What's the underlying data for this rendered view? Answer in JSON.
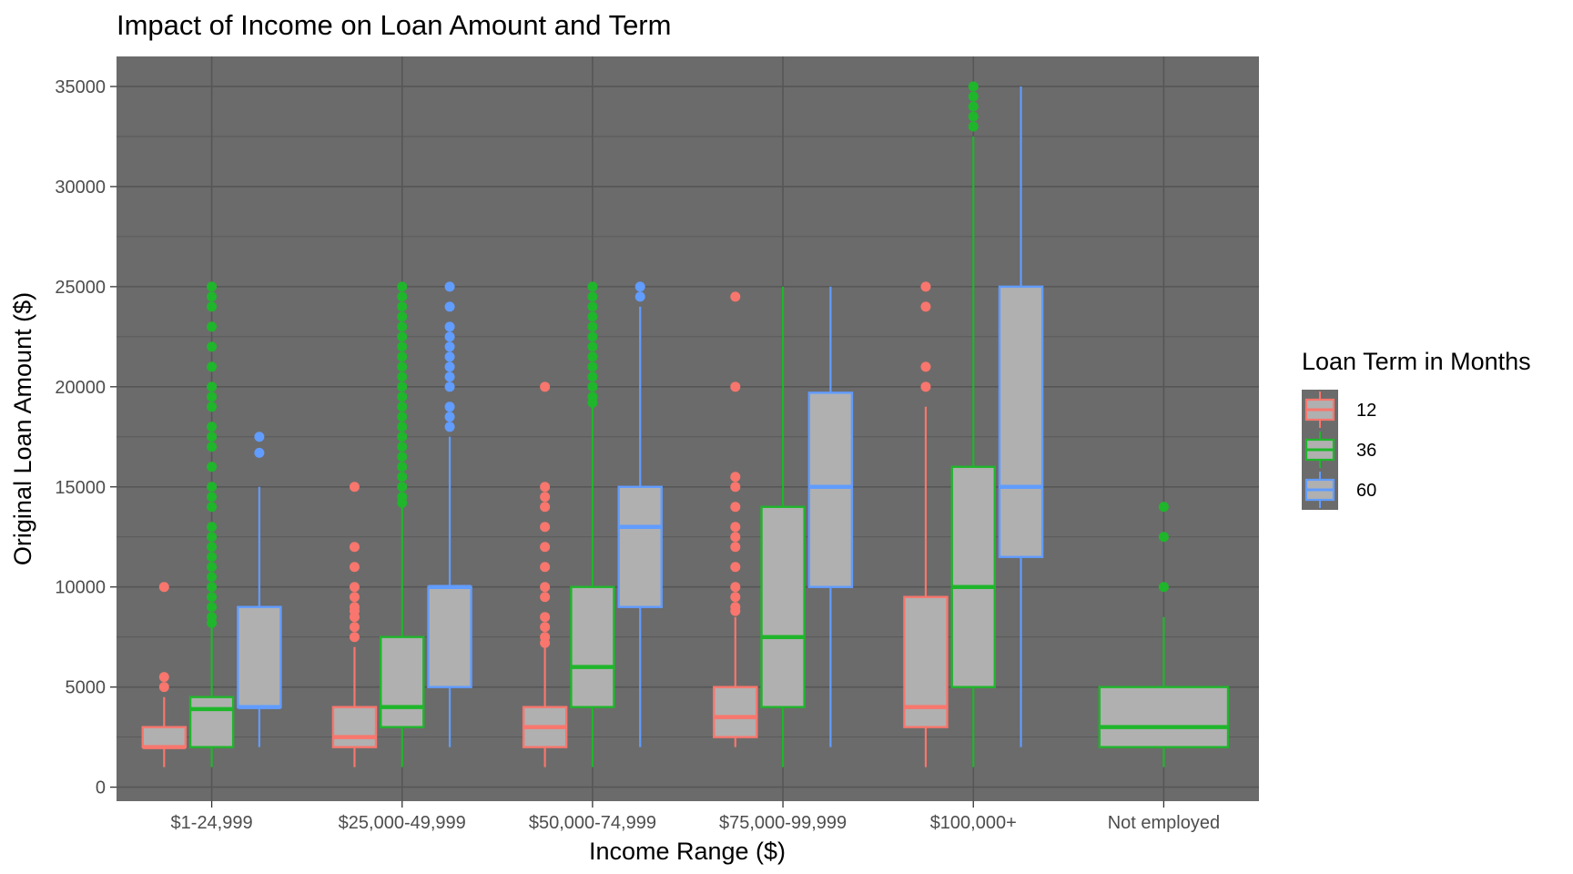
{
  "chart_data": {
    "type": "boxplot",
    "title": "Impact of Income on Loan Amount and Term",
    "xlabel": "Income Range ($)",
    "ylabel": "Original Loan Amount ($)",
    "categories": [
      "$1-24,999",
      "$25,000-49,999",
      "$50,000-74,999",
      "$75,000-99,999",
      "$100,000+",
      "Not employed"
    ],
    "ylim": [
      -700,
      36500
    ],
    "yticks": [
      0,
      5000,
      10000,
      15000,
      20000,
      25000,
      30000,
      35000
    ],
    "grid": true,
    "legend": {
      "title": "Loan Term in Months",
      "position": "right",
      "entries": [
        "12",
        "36",
        "60"
      ]
    },
    "colors": {
      "12": "#f8766d",
      "36": "#1fb62b",
      "60": "#619cff",
      "panel": "#6b6b6b",
      "grid": "#565656",
      "box_fill": "#b0b0b0"
    },
    "series": [
      {
        "name": "12",
        "boxes": [
          {
            "category": "$1-24,999",
            "min": 1000,
            "q1": 2000,
            "median": 2000,
            "q3": 3000,
            "max": 4500,
            "outliers": [
              5000,
              5500,
              10000
            ]
          },
          {
            "category": "$25,000-49,999",
            "min": 1000,
            "q1": 2000,
            "median": 2500,
            "q3": 4000,
            "max": 7000,
            "outliers": [
              7500,
              8000,
              8500,
              8800,
              9000,
              9500,
              10000,
              11000,
              12000,
              15000
            ]
          },
          {
            "category": "$50,000-74,999",
            "min": 1000,
            "q1": 2000,
            "median": 3000,
            "q3": 4000,
            "max": 7000,
            "outliers": [
              7200,
              7500,
              8000,
              8500,
              9500,
              10000,
              11000,
              12000,
              13000,
              14000,
              14500,
              15000,
              20000
            ]
          },
          {
            "category": "$75,000-99,999",
            "min": 2000,
            "q1": 2500,
            "median": 3500,
            "q3": 5000,
            "max": 8500,
            "outliers": [
              8800,
              9000,
              9500,
              10000,
              11000,
              12000,
              12500,
              13000,
              14000,
              15000,
              15500,
              20000,
              24500
            ]
          },
          {
            "category": "$100,000+",
            "min": 1000,
            "q1": 3000,
            "median": 4000,
            "q3": 9500,
            "max": 19000,
            "outliers": [
              20000,
              21000,
              24000,
              25000
            ]
          }
        ]
      },
      {
        "name": "36",
        "boxes": [
          {
            "category": "$1-24,999",
            "min": 1000,
            "q1": 2000,
            "median": 3900,
            "q3": 4500,
            "max": 8000,
            "outliers": [
              8200,
              8500,
              9000,
              9500,
              10000,
              10500,
              11000,
              11500,
              12000,
              12500,
              13000,
              14000,
              14500,
              15000,
              16000,
              17000,
              17500,
              18000,
              19000,
              19500,
              20000,
              21000,
              22000,
              23000,
              24000,
              24500,
              25000
            ]
          },
          {
            "category": "$25,000-49,999",
            "min": 1000,
            "q1": 3000,
            "median": 4000,
            "q3": 7500,
            "max": 14000,
            "outliers": [
              14200,
              14500,
              15000,
              15500,
              16000,
              16500,
              17000,
              17500,
              18000,
              18500,
              19000,
              19500,
              20000,
              20500,
              21000,
              21500,
              22000,
              22500,
              23000,
              23500,
              24000,
              24500,
              25000
            ]
          },
          {
            "category": "$50,000-74,999",
            "min": 1000,
            "q1": 4000,
            "median": 6000,
            "q3": 10000,
            "max": 19000,
            "outliers": [
              19200,
              19500,
              20000,
              20500,
              21000,
              21500,
              22000,
              22500,
              23000,
              23500,
              24000,
              24500,
              25000
            ]
          },
          {
            "category": "$75,000-99,999",
            "min": 1000,
            "q1": 4000,
            "median": 7500,
            "q3": 14000,
            "max": 25000,
            "outliers": []
          },
          {
            "category": "$100,000+",
            "min": 1000,
            "q1": 5000,
            "median": 10000,
            "q3": 16000,
            "max": 32500,
            "outliers": [
              33000,
              33500,
              34000,
              34500,
              35000
            ]
          },
          {
            "category": "Not employed",
            "min": 1000,
            "q1": 2000,
            "median": 3000,
            "q3": 5000,
            "max": 8500,
            "outliers": [
              10000,
              12500,
              14000
            ]
          }
        ]
      },
      {
        "name": "60",
        "boxes": [
          {
            "category": "$1-24,999",
            "min": 2000,
            "q1": 4000,
            "median": 4000,
            "q3": 9000,
            "max": 15000,
            "outliers": [
              16700,
              17500
            ]
          },
          {
            "category": "$25,000-49,999",
            "min": 2000,
            "q1": 5000,
            "median": 10000,
            "q3": 10000,
            "max": 17500,
            "outliers": [
              18000,
              18500,
              19000,
              20000,
              20500,
              21000,
              21500,
              22000,
              22500,
              23000,
              24000,
              25000
            ]
          },
          {
            "category": "$50,000-74,999",
            "min": 2000,
            "q1": 9000,
            "median": 13000,
            "q3": 15000,
            "max": 24000,
            "outliers": [
              24500,
              25000
            ]
          },
          {
            "category": "$75,000-99,999",
            "min": 2000,
            "q1": 10000,
            "median": 15000,
            "q3": 19700,
            "max": 25000,
            "outliers": []
          },
          {
            "category": "$100,000+",
            "min": 2000,
            "q1": 11500,
            "median": 15000,
            "q3": 25000,
            "max": 35000,
            "outliers": []
          }
        ]
      }
    ]
  }
}
